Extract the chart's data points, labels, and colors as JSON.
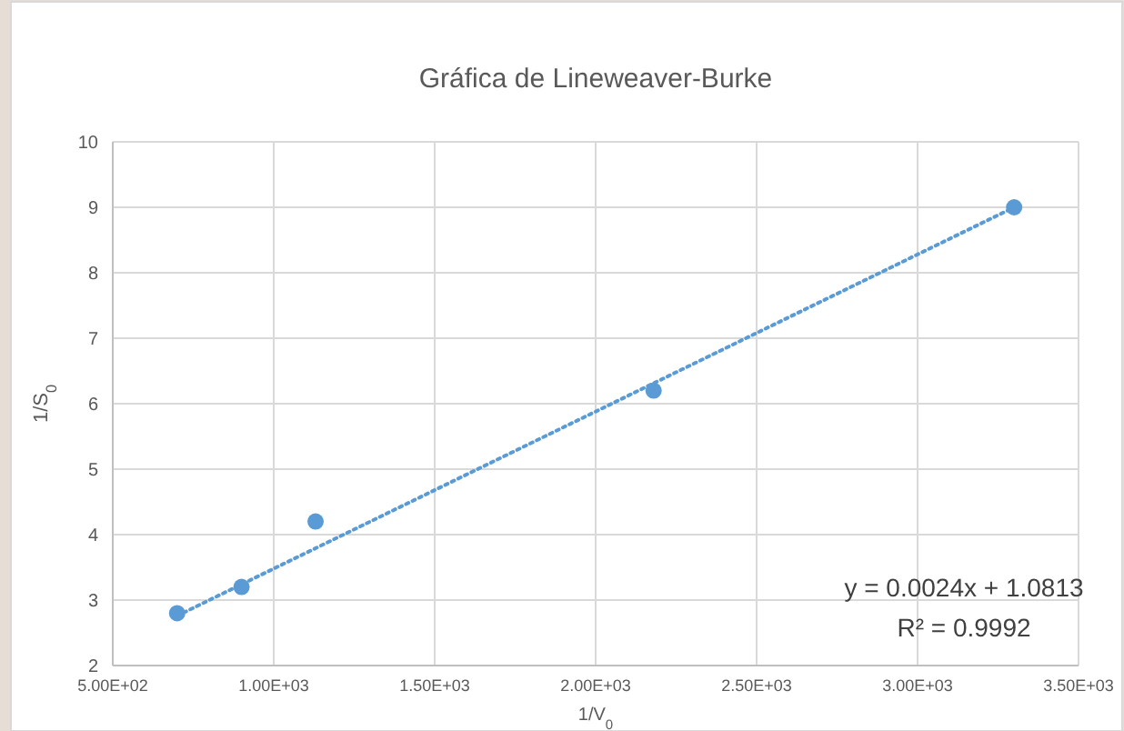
{
  "chart_data": {
    "type": "scatter",
    "title": "Gráfica de Lineweaver-Burke",
    "xlabel": "1/V$_{0}$",
    "ylabel": "1/S$_{0}$",
    "series": [
      {
        "color": "#5b9bd5",
        "x": [
          700,
          900,
          1130,
          2180,
          3300
        ],
        "values": [
          2.8,
          3.2,
          4.2,
          6.2,
          9.0
        ],
        "marker": "circle"
      },
      {
        "type": "line",
        "color": "#5b9bd5",
        "x": [
          700,
          3300
        ],
        "values": [
          2.76,
          9.0
        ],
        "line_style": "dotted",
        "marker": "none"
      }
    ],
    "xlim": [
      500,
      3500
    ],
    "xticks": [
      {
        "value": 500,
        "label": "5.00E+02"
      },
      {
        "value": 1000,
        "label": "1.00E+03"
      },
      {
        "value": 1500,
        "label": "1.50E+03"
      },
      {
        "value": 2000,
        "label": "2.00E+03"
      },
      {
        "value": 2500,
        "label": "2.50E+03"
      },
      {
        "value": 3000,
        "label": "3.00E+03"
      },
      {
        "value": 3500,
        "label": "3.50E+03"
      }
    ],
    "ylim": [
      2,
      10
    ],
    "yticks": [
      2,
      3,
      4,
      5,
      6,
      7,
      8,
      9,
      10
    ],
    "grid": true,
    "annotations": [
      "y = 0.0024x + 1.0813",
      "R² = 0.9992"
    ]
  }
}
